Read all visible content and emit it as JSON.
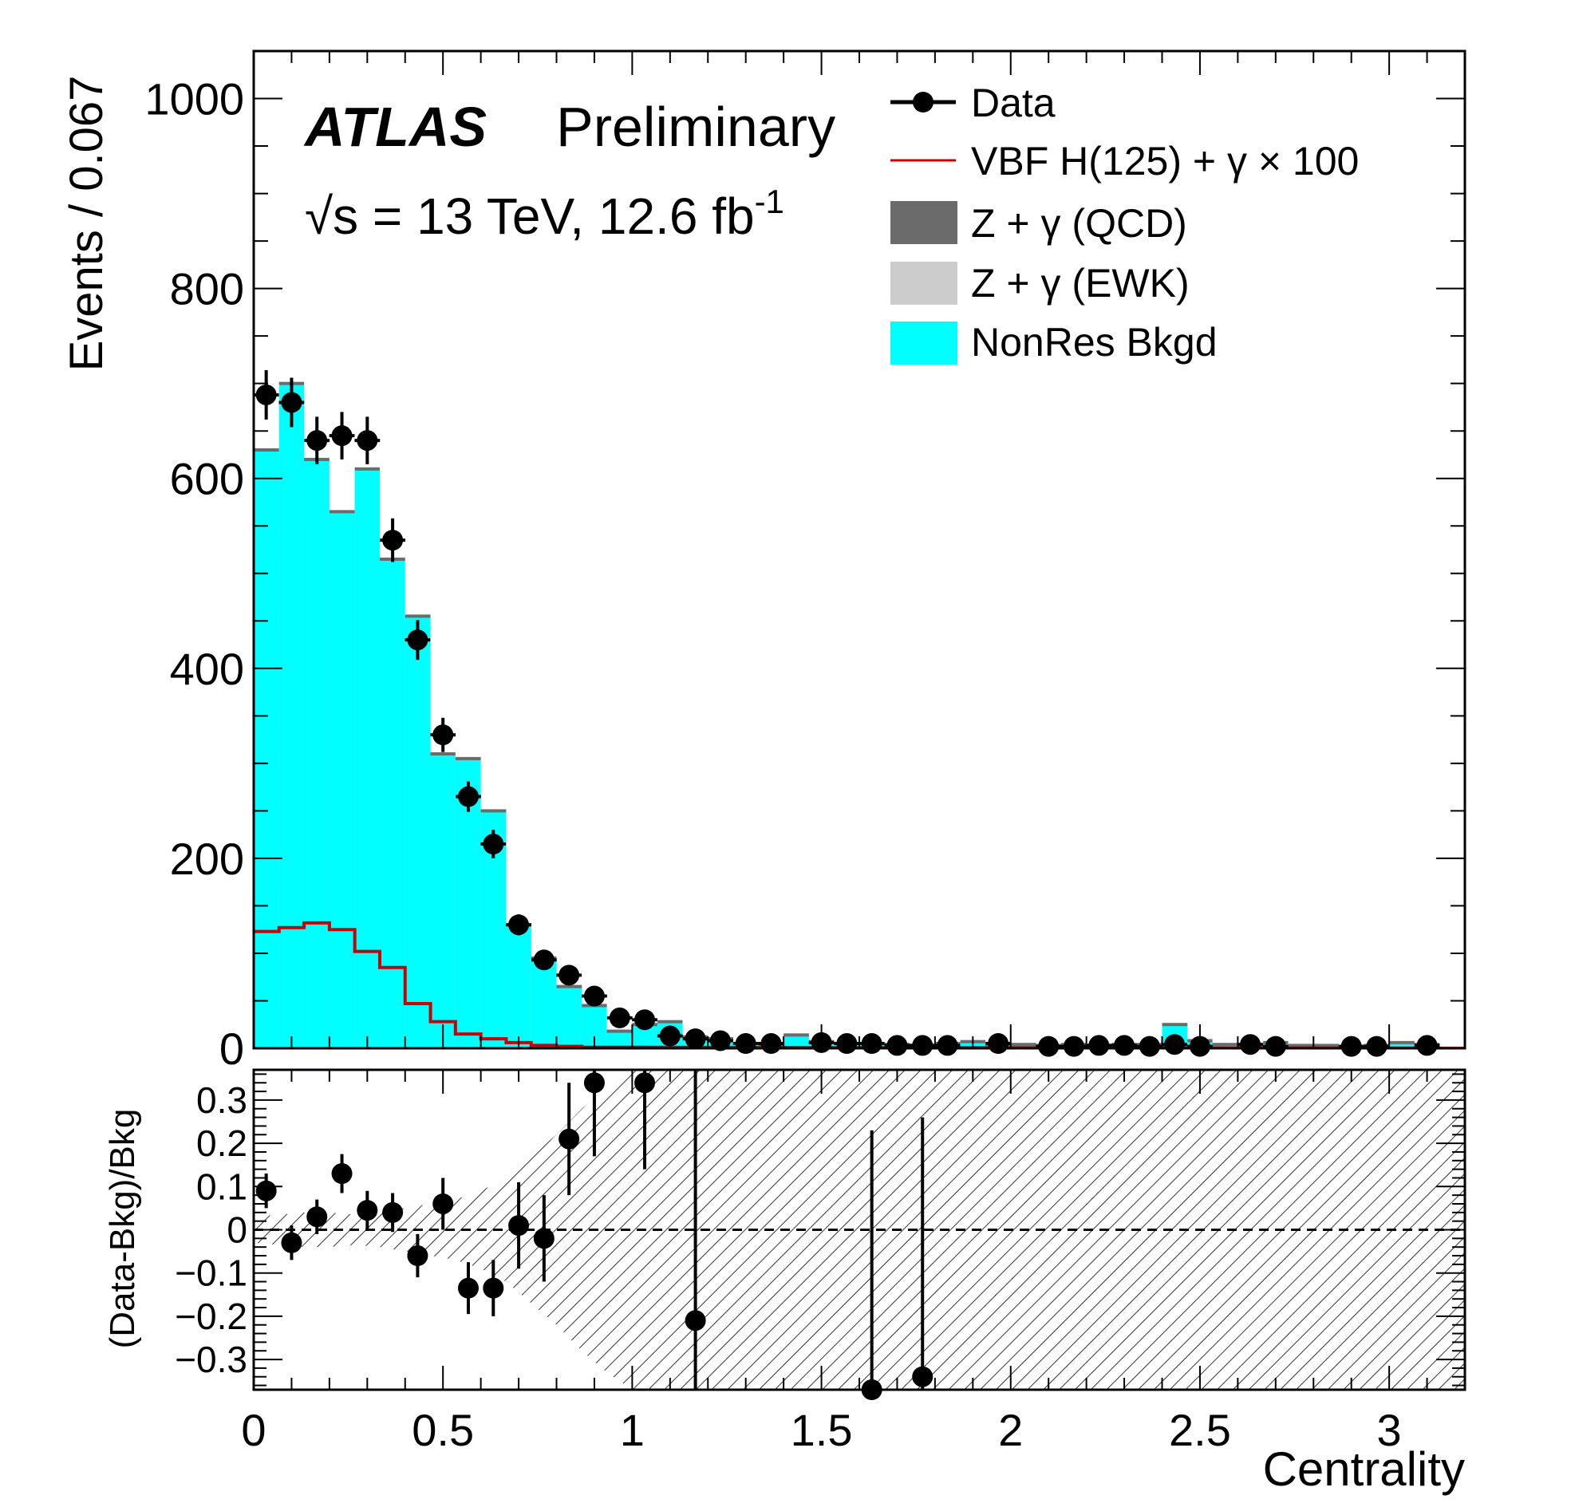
{
  "chart_data": [
    {
      "type": "bar",
      "panel": "main",
      "title": "",
      "experiment": "ATLAS",
      "label": "Preliminary",
      "energy_lumi": {
        "prefix": "√s = 13 TeV, 12.6 fb",
        "superscript": "-1"
      },
      "xlabel": "Centrality",
      "ylabel": "Events / 0.067",
      "xlim": [
        0,
        3.2
      ],
      "ylim": [
        0,
        1050
      ],
      "y_ticks": [
        "0",
        "200",
        "400",
        "600",
        "800",
        "1000"
      ],
      "bin_width": 0.067,
      "legend": {
        "placement": "top-right",
        "entries": [
          {
            "label": "Data",
            "style": "marker",
            "color": "#000000"
          },
          {
            "label": "VBF H(125) + γ × 100",
            "style": "line",
            "color": "#cc0000"
          },
          {
            "label": "Z + γ (QCD)",
            "style": "fill",
            "color": "#6b6b6b"
          },
          {
            "label": "Z + γ (EWK)",
            "style": "fill",
            "color": "#cccccc"
          },
          {
            "label": "NonRes Bkgd",
            "style": "fill",
            "color": "#00ffff"
          }
        ]
      },
      "series": [
        {
          "name": "NonRes Bkgd",
          "kind": "stacked-histogram",
          "color": "#00ffff",
          "bin_edges": [
            0,
            0.067,
            0.133,
            0.2,
            0.267,
            0.333,
            0.4,
            0.467,
            0.533,
            0.6,
            0.667,
            0.733,
            0.8,
            0.867,
            0.933,
            1.0,
            1.067,
            1.133,
            1.2,
            1.267,
            1.333,
            1.4,
            1.467,
            1.533,
            1.6,
            1.667,
            1.733,
            1.8,
            1.867,
            1.933,
            2.0,
            2.067,
            2.133,
            2.2,
            2.267,
            2.333,
            2.4,
            2.467,
            2.533,
            2.6,
            2.667,
            2.733,
            2.8,
            2.867,
            2.933,
            3.0,
            3.067,
            3.133
          ],
          "values": [
            630,
            700,
            620,
            565,
            610,
            515,
            455,
            310,
            305,
            250,
            130,
            95,
            65,
            45,
            18,
            25,
            28,
            12,
            10,
            5,
            4,
            14,
            7,
            5,
            5,
            4,
            3,
            5,
            7,
            4,
            4,
            3,
            4,
            3,
            4,
            4,
            25,
            8,
            4,
            4,
            6,
            3,
            3,
            2,
            3,
            6,
            4
          ]
        },
        {
          "name": "Data",
          "kind": "points",
          "color": "#000000",
          "x": [
            0.033,
            0.1,
            0.167,
            0.233,
            0.3,
            0.367,
            0.433,
            0.5,
            0.567,
            0.633,
            0.7,
            0.767,
            0.833,
            0.9,
            0.967,
            1.033,
            1.1,
            1.167,
            1.233,
            1.3,
            1.367,
            1.5,
            1.567,
            1.633,
            1.7,
            1.767,
            1.833,
            1.967,
            2.1,
            2.167,
            2.233,
            2.3,
            2.367,
            2.433,
            2.5,
            2.633,
            2.7,
            2.9,
            2.967,
            3.1
          ],
          "y": [
            688,
            680,
            640,
            645,
            640,
            535,
            430,
            330,
            265,
            215,
            130,
            93,
            77,
            55,
            32,
            30,
            13,
            10,
            8,
            5,
            5,
            6,
            5,
            5,
            3,
            3,
            3,
            5,
            2,
            2,
            3,
            3,
            2,
            4,
            2,
            4,
            2,
            2,
            2,
            3
          ],
          "yerr": [
            26,
            26,
            25,
            25,
            25,
            23,
            21,
            18,
            16,
            15,
            11,
            10,
            9,
            7,
            6,
            5,
            4,
            3,
            3,
            2,
            2,
            2,
            2,
            2,
            2,
            2,
            2,
            2,
            1,
            1,
            2,
            2,
            1,
            2,
            1,
            2,
            1,
            1,
            1,
            2
          ]
        },
        {
          "name": "VBF H(125) + γ × 100",
          "kind": "step-line",
          "color": "#cc0000",
          "bin_edges": [
            0,
            0.067,
            0.133,
            0.2,
            0.267,
            0.333,
            0.4,
            0.467,
            0.533,
            0.6,
            0.667,
            0.733,
            0.8,
            0.867,
            0.933,
            1.0
          ],
          "values": [
            123,
            127,
            132,
            125,
            102,
            85,
            47,
            28,
            15,
            10,
            6,
            3,
            2,
            1,
            1
          ],
          "tail_value": 0
        }
      ]
    },
    {
      "type": "scatter",
      "panel": "ratio",
      "ylabel": "(Data-Bkg)/Bkg",
      "xlabel": "Centrality",
      "xlim": [
        0,
        3.2
      ],
      "ylim": [
        -0.37,
        0.37
      ],
      "x_ticks": [
        "0",
        "0.5",
        "1",
        "1.5",
        "2",
        "2.5",
        "3"
      ],
      "y_ticks": [
        "−0.3",
        "−0.2",
        "−0.1",
        "0",
        "0.1",
        "0.2",
        "0.3"
      ],
      "reference_line": 0,
      "uncertainty_band": {
        "style": "hatched",
        "x": [
          0,
          0.067,
          0.133,
          0.2,
          0.267,
          0.333,
          0.4,
          0.467,
          0.533,
          0.6,
          0.667,
          0.733,
          0.8,
          0.867,
          0.933,
          1.0,
          3.2
        ],
        "half_width": [
          0.03,
          0.035,
          0.04,
          0.04,
          0.035,
          0.04,
          0.05,
          0.06,
          0.07,
          0.09,
          0.12,
          0.17,
          0.22,
          0.28,
          0.33,
          0.37,
          0.37
        ]
      },
      "x": [
        0.033,
        0.1,
        0.167,
        0.233,
        0.3,
        0.367,
        0.433,
        0.5,
        0.567,
        0.633,
        0.7,
        0.767,
        0.833,
        0.9,
        1.033,
        1.167,
        1.633,
        1.767
      ],
      "y": [
        0.09,
        -0.03,
        0.03,
        0.13,
        0.045,
        0.04,
        -0.06,
        0.06,
        -0.135,
        -0.135,
        0.01,
        -0.02,
        0.21,
        0.34,
        0.34,
        -0.21,
        -0.37,
        -0.34
      ],
      "yerr": [
        0.04,
        0.04,
        0.04,
        0.045,
        0.045,
        0.045,
        0.05,
        0.06,
        0.06,
        0.065,
        0.1,
        0.1,
        0.13,
        0.17,
        0.2,
        0.6,
        0.6,
        0.6
      ]
    }
  ]
}
